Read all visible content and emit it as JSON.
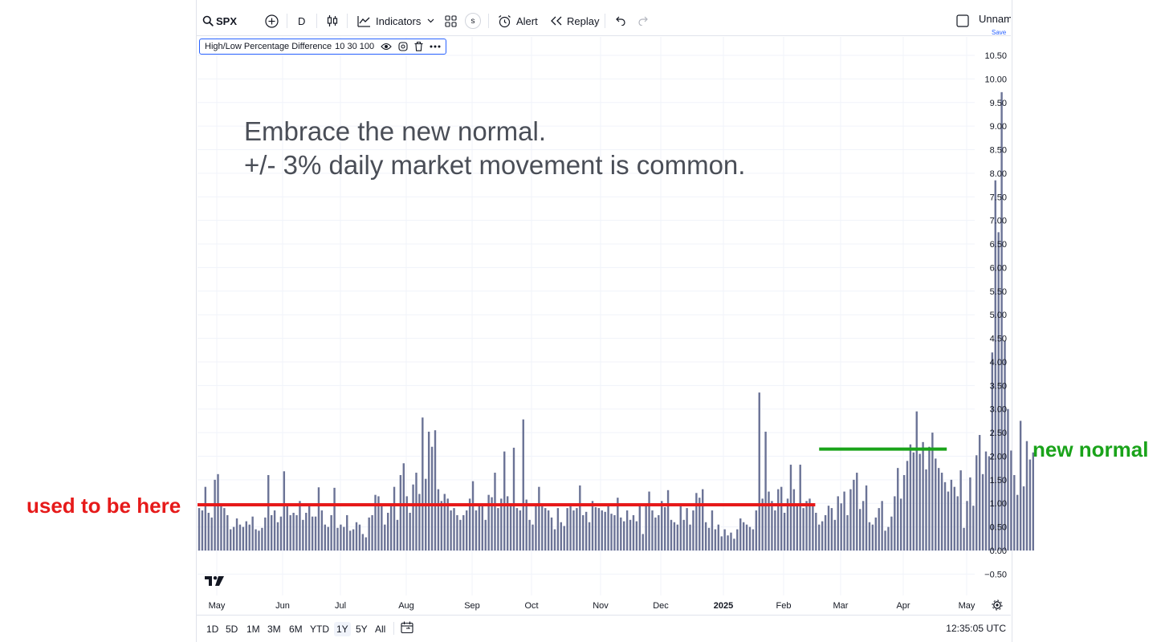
{
  "toolbar": {
    "symbol": "SPX",
    "interval": "D",
    "indicators_label": "Indicators",
    "s_badge": "s",
    "alert_label": "Alert",
    "replay_label": "Replay",
    "layout_name": "Unnamed",
    "save_label": "Save"
  },
  "legend": {
    "indicator_name": "High/Low Percentage Difference",
    "params": "10 30 100"
  },
  "annotations": {
    "line1": "Embrace the new normal.",
    "line2": "+/- 3% daily market movement is common.",
    "old_level_label": "used to be here",
    "new_level_label": "new normal"
  },
  "colors": {
    "bar": "#6b7396",
    "old_level": "#e61a1a",
    "new_level": "#1aa31a",
    "accent": "#2962ff"
  },
  "bottom": {
    "ranges": [
      "1D",
      "5D",
      "1M",
      "3M",
      "6M",
      "YTD",
      "1Y",
      "5Y",
      "All"
    ],
    "active_range": "1Y",
    "clock": "12:35:05 UTC"
  },
  "chart_data": {
    "type": "bar",
    "title": "",
    "xlabel": "",
    "ylabel": "",
    "ylim": [
      -0.75,
      10.75
    ],
    "yticks": [
      "10.50",
      "10.00",
      "9.50",
      "9.00",
      "8.50",
      "8.00",
      "7.50",
      "7.00",
      "6.50",
      "6.00",
      "5.50",
      "5.00",
      "4.50",
      "4.00",
      "3.50",
      "3.00",
      "2.50",
      "2.00",
      "1.50",
      "1.00",
      "0.50",
      "0.00",
      "−0.50"
    ],
    "xtick_labels": [
      "May",
      "Jun",
      "Jul",
      "Aug",
      "Sep",
      "Oct",
      "Nov",
      "Dec",
      "2025",
      "Feb",
      "Mar",
      "Apr",
      "May"
    ],
    "grid": true,
    "reference_lines": [
      {
        "label": "used to be here",
        "value": 0.97,
        "from_index": 0,
        "to_index": 195
      },
      {
        "label": "new normal",
        "value": 2.15,
        "from_index": 197,
        "to_index": 235
      }
    ],
    "series": [
      {
        "values": [
          0.9,
          0.85,
          1.35,
          0.8,
          0.7,
          1.5,
          1.62,
          0.95,
          0.9,
          0.75,
          0.45,
          0.5,
          0.68,
          0.55,
          0.5,
          0.62,
          0.55,
          0.72,
          0.45,
          0.42,
          0.48,
          0.7,
          1.6,
          0.75,
          0.85,
          0.6,
          0.72,
          1.68,
          1.0,
          0.75,
          0.8,
          0.75,
          1.05,
          0.65,
          0.8,
          0.95,
          0.72,
          0.72,
          1.34,
          0.85,
          0.55,
          0.5,
          0.75,
          1.33,
          0.48,
          0.55,
          0.5,
          0.75,
          0.42,
          0.45,
          0.6,
          0.55,
          0.35,
          0.28,
          0.7,
          0.75,
          1.18,
          1.15,
          0.95,
          0.55,
          0.8,
          0.95,
          1.35,
          0.65,
          1.6,
          1.85,
          1.15,
          0.8,
          1.4,
          1.65,
          1.2,
          2.82,
          1.52,
          2.52,
          2.2,
          2.55,
          1.3,
          1.05,
          1.2,
          1.1,
          0.85,
          0.9,
          0.75,
          0.65,
          0.75,
          0.85,
          1.1,
          1.47,
          0.85,
          0.95,
          1.0,
          0.65,
          1.18,
          1.13,
          1.65,
          0.9,
          1.1,
          2.1,
          1.15,
          1.0,
          2.18,
          0.9,
          0.85,
          2.78,
          1.08,
          0.65,
          0.55,
          0.95,
          1.35,
          1.0,
          0.9,
          0.85,
          0.7,
          0.45,
          0.9,
          0.6,
          0.52,
          0.9,
          1.0,
          0.85,
          0.9,
          1.38,
          0.75,
          0.82,
          0.6,
          1.05,
          0.92,
          0.9,
          0.85,
          0.82,
          1.0,
          0.78,
          0.75,
          1.12,
          0.7,
          0.62,
          0.85,
          0.65,
          0.75,
          0.62,
          1.0,
          0.35,
          1.0,
          1.25,
          0.85,
          0.7,
          0.75,
          1.05,
          0.92,
          1.28,
          0.65,
          0.6,
          0.55,
          1.0,
          0.65,
          0.9,
          0.55,
          0.85,
          1.22,
          1.12,
          1.3,
          0.6,
          0.48,
          0.85,
          0.45,
          0.55,
          0.3,
          0.45,
          0.32,
          0.38,
          0.25,
          0.45,
          0.68,
          0.6,
          0.55,
          0.5,
          0.45,
          0.85,
          3.35,
          1.1,
          2.52,
          1.25,
          1.05,
          0.85,
          1.3,
          1.35,
          0.8,
          1.1,
          1.82,
          1.3,
          1.0,
          1.82,
          0.9,
          1.05,
          1.1,
          0.98,
          0.8,
          0.55,
          0.62,
          0.75,
          0.95,
          0.9,
          0.65,
          1.15,
          1.0,
          1.25,
          0.75,
          1.3,
          1.5,
          1.65,
          0.88,
          1.05,
          1.38,
          0.6,
          0.55,
          0.7,
          0.9,
          1.05,
          0.42,
          0.5,
          0.72,
          1.15,
          1.75,
          1.1,
          1.6,
          1.9,
          2.25,
          2.08,
          2.95,
          2.05,
          2.3,
          1.72,
          2.2,
          2.5,
          1.95,
          1.75,
          1.65,
          1.45,
          1.25,
          1.5,
          1.35,
          1.15,
          1.7,
          0.48,
          1.05,
          1.55,
          0.95,
          2.02,
          2.45,
          1.62,
          2.1,
          2.0,
          4.2,
          7.85,
          6.75,
          9.72,
          4.45,
          3.0,
          2.12,
          1.6,
          1.18,
          2.75,
          1.36,
          2.32,
          1.93,
          2.08
        ]
      }
    ]
  }
}
